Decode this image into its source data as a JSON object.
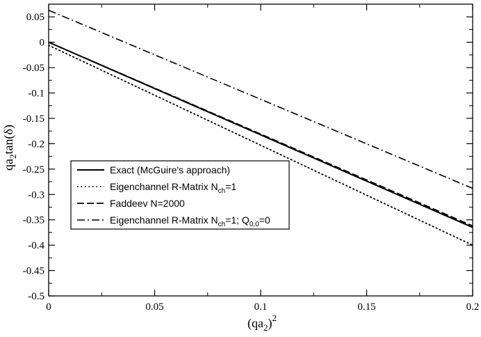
{
  "chart_data": {
    "type": "line",
    "title": "",
    "xlabel": {
      "base": "(qa",
      "sub": "2",
      "close": ")",
      "sup": "2"
    },
    "ylabel": {
      "base": "qa",
      "sub": "2",
      "rest": "tan(δ)"
    },
    "xlim": [
      0,
      0.2
    ],
    "ylim": [
      -0.5,
      0.075
    ],
    "xticks": [
      0,
      0.05,
      0.1,
      0.15,
      0.2
    ],
    "xtick_labels": [
      "0",
      "0.05",
      "0.1",
      "0.15",
      "0.2"
    ],
    "yticks": [
      0.05,
      0,
      -0.05,
      -0.1,
      -0.15,
      -0.2,
      -0.25,
      -0.3,
      -0.35,
      -0.4,
      -0.45,
      -0.5
    ],
    "ytick_labels": [
      "0.05",
      "0",
      "-0.05",
      "-0.1",
      "-0.15",
      "-0.2",
      "-0.25",
      "-0.3",
      "-0.35",
      "-0.4",
      "-0.45",
      "-0.5"
    ],
    "grid": false,
    "legend_position": "center-left",
    "series": [
      {
        "name": "Exact (McGuire's approach)",
        "legend": {
          "text": "Exact (McGuire's approach)"
        },
        "style": "solid",
        "x": [
          0,
          0.2
        ],
        "y": [
          0,
          -0.365
        ]
      },
      {
        "name": "Eigenchannel R-Matrix N_ch=1",
        "legend": {
          "text": "Eigenchannel R-Matrix N",
          "sub": "ch",
          "after": "=1"
        },
        "style": "dotted",
        "x": [
          0,
          0.2
        ],
        "y": [
          -0.006,
          -0.4
        ]
      },
      {
        "name": "Faddeev N=2000",
        "legend": {
          "text": "Faddeev N=2000"
        },
        "style": "dashed",
        "x": [
          0,
          0.2
        ],
        "y": [
          0,
          -0.362
        ]
      },
      {
        "name": "Eigenchannel R-Matrix N_ch=1; Q_0,0=0",
        "legend": {
          "text": "Eigenchannel R-Matrix N",
          "sub": "ch",
          "after": "=1; Q",
          "sub2": "0,0",
          "after2": "=0"
        },
        "style": "dashdot",
        "x": [
          0,
          0.2
        ],
        "y": [
          0.063,
          -0.288
        ]
      }
    ]
  }
}
